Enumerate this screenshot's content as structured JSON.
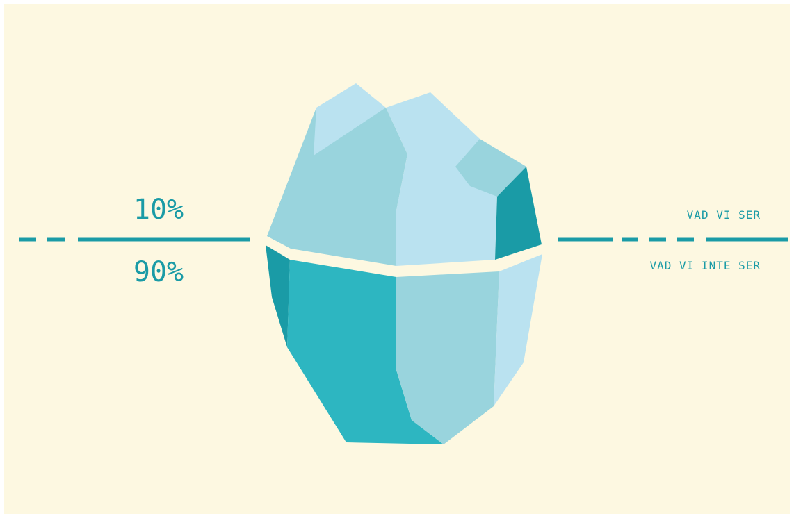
{
  "diagram": {
    "above_percent": "10%",
    "below_percent": "90%",
    "above_label": "VAD VI SER",
    "below_label": "VAD VI INTE SER"
  },
  "colors": {
    "background": "#fdf8e1",
    "accent": "#1a9ba6",
    "ice_light": "#bae2f0",
    "ice_mid": "#99d4dd",
    "ice_teal": "#2db6c1",
    "ice_dark": "#1a9ba6"
  },
  "icons": [
    "iceberg-illustration",
    "waterline"
  ]
}
